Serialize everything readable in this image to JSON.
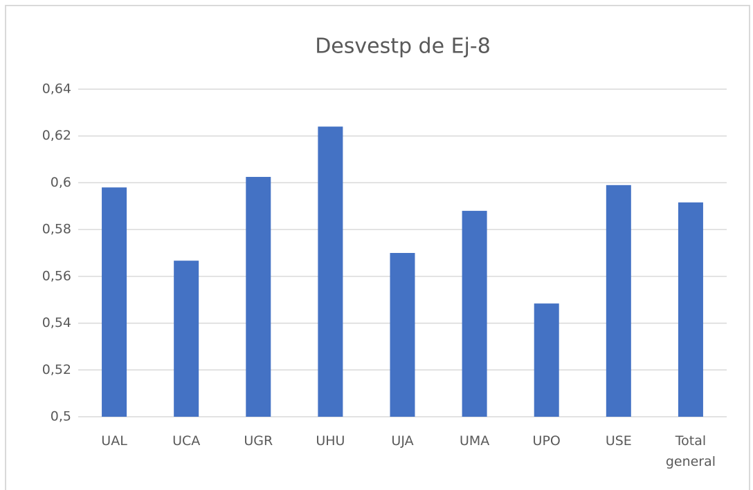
{
  "chart_data": {
    "type": "bar",
    "title": "Desvestp de Ej-8",
    "categories": [
      "UAL",
      "UCA",
      "UGR",
      "UHU",
      "UJA",
      "UMA",
      "UPO",
      "USE",
      "Total general"
    ],
    "values": [
      0.598,
      0.5667,
      0.6025,
      0.624,
      0.57,
      0.588,
      0.5484,
      0.599,
      0.5916
    ],
    "color": "#4472c4",
    "ylim": [
      0.5,
      0.64
    ],
    "yticks": [
      {
        "value": 0.5,
        "label": "0,5"
      },
      {
        "value": 0.52,
        "label": "0,52"
      },
      {
        "value": 0.54,
        "label": "0,54"
      },
      {
        "value": 0.56,
        "label": "0,56"
      },
      {
        "value": 0.58,
        "label": "0,58"
      },
      {
        "value": 0.6,
        "label": "0,6"
      },
      {
        "value": 0.62,
        "label": "0,62"
      },
      {
        "value": 0.64,
        "label": "0,64"
      }
    ],
    "grid": true
  }
}
